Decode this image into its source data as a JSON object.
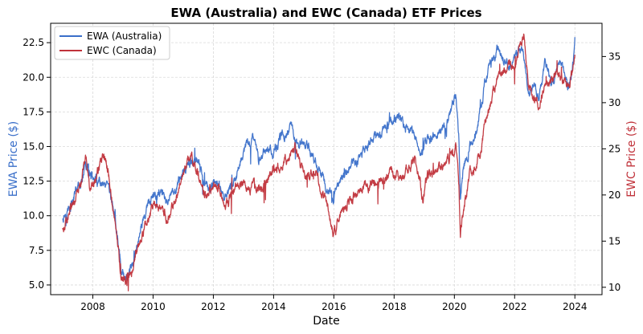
{
  "chart_data": {
    "type": "line",
    "title": "EWA (Australia) and EWC (Canada) ETF Prices",
    "xlabel": "Date",
    "ylabel_left": "EWA Price ($)",
    "ylabel_right": "EWC Price ($)",
    "xlim": [
      2006.6,
      2024.9
    ],
    "ylim_left": [
      4.3,
      23.9
    ],
    "ylim_right": [
      9.2,
      38.6
    ],
    "x_ticks": [
      2008,
      2010,
      2012,
      2014,
      2016,
      2018,
      2020,
      2022,
      2024
    ],
    "y_ticks_left": [
      5.0,
      7.5,
      10.0,
      12.5,
      15.0,
      17.5,
      20.0,
      22.5
    ],
    "y_ticks_right": [
      10,
      15,
      20,
      25,
      30,
      35
    ],
    "grid": true,
    "legend_position": "top-left",
    "colors": {
      "ewa": "#3a6fc9",
      "ewc": "#c0323a"
    },
    "series": [
      {
        "name": "EWA (Australia)",
        "axis": "left",
        "color": "#3a6fc9",
        "points": [
          [
            2007.0,
            9.9
          ],
          [
            2007.2,
            10.7
          ],
          [
            2007.4,
            11.5
          ],
          [
            2007.6,
            12.3
          ],
          [
            2007.75,
            13.8
          ],
          [
            2007.9,
            12.8
          ],
          [
            2008.1,
            12.5
          ],
          [
            2008.3,
            12.0
          ],
          [
            2008.5,
            11.8
          ],
          [
            2008.7,
            10.3
          ],
          [
            2008.85,
            8.0
          ],
          [
            2008.95,
            6.1
          ],
          [
            2009.1,
            5.4
          ],
          [
            2009.3,
            6.6
          ],
          [
            2009.5,
            8.2
          ],
          [
            2009.7,
            9.9
          ],
          [
            2009.9,
            11.0
          ],
          [
            2010.1,
            11.4
          ],
          [
            2010.3,
            11.8
          ],
          [
            2010.45,
            10.5
          ],
          [
            2010.6,
            11.5
          ],
          [
            2010.8,
            12.3
          ],
          [
            2011.0,
            13.2
          ],
          [
            2011.3,
            14.0
          ],
          [
            2011.5,
            13.8
          ],
          [
            2011.7,
            12.2
          ],
          [
            2011.9,
            11.6
          ],
          [
            2012.1,
            12.3
          ],
          [
            2012.4,
            11.3
          ],
          [
            2012.7,
            12.5
          ],
          [
            2013.0,
            14.5
          ],
          [
            2013.3,
            15.8
          ],
          [
            2013.5,
            14.0
          ],
          [
            2013.8,
            15.0
          ],
          [
            2014.0,
            14.6
          ],
          [
            2014.3,
            15.8
          ],
          [
            2014.6,
            16.4
          ],
          [
            2014.8,
            15.2
          ],
          [
            2015.0,
            15.2
          ],
          [
            2015.3,
            14.4
          ],
          [
            2015.6,
            12.8
          ],
          [
            2015.8,
            11.7
          ],
          [
            2016.0,
            11.4
          ],
          [
            2016.2,
            12.6
          ],
          [
            2016.5,
            13.5
          ],
          [
            2016.8,
            14.2
          ],
          [
            2017.0,
            14.6
          ],
          [
            2017.3,
            15.6
          ],
          [
            2017.6,
            16.2
          ],
          [
            2017.9,
            16.7
          ],
          [
            2018.1,
            17.2
          ],
          [
            2018.4,
            16.4
          ],
          [
            2018.7,
            15.8
          ],
          [
            2018.9,
            14.6
          ],
          [
            2019.1,
            15.4
          ],
          [
            2019.4,
            16.0
          ],
          [
            2019.7,
            16.7
          ],
          [
            2019.9,
            17.8
          ],
          [
            2020.05,
            18.5
          ],
          [
            2020.15,
            15.5
          ],
          [
            2020.2,
            11.4
          ],
          [
            2020.3,
            13.5
          ],
          [
            2020.5,
            15.0
          ],
          [
            2020.7,
            16.0
          ],
          [
            2020.9,
            18.0
          ],
          [
            2021.0,
            19.6
          ],
          [
            2021.2,
            20.8
          ],
          [
            2021.45,
            22.2
          ],
          [
            2021.6,
            21.4
          ],
          [
            2021.8,
            20.9
          ],
          [
            2022.0,
            21.4
          ],
          [
            2022.25,
            22.0
          ],
          [
            2022.45,
            19.2
          ],
          [
            2022.6,
            19.6
          ],
          [
            2022.8,
            18.6
          ],
          [
            2023.0,
            21.2
          ],
          [
            2023.2,
            19.7
          ],
          [
            2023.5,
            20.7
          ],
          [
            2023.8,
            19.3
          ],
          [
            2023.95,
            21.1
          ],
          [
            2024.0,
            22.9
          ]
        ]
      },
      {
        "name": "EWC (Canada)",
        "axis": "right",
        "color": "#c0323a",
        "points": [
          [
            2007.0,
            16.5
          ],
          [
            2007.2,
            18.0
          ],
          [
            2007.4,
            19.6
          ],
          [
            2007.6,
            21.0
          ],
          [
            2007.75,
            24.5
          ],
          [
            2007.9,
            21.0
          ],
          [
            2008.1,
            21.8
          ],
          [
            2008.35,
            24.2
          ],
          [
            2008.5,
            22.8
          ],
          [
            2008.7,
            18.2
          ],
          [
            2008.85,
            14.0
          ],
          [
            2008.95,
            11.0
          ],
          [
            2009.1,
            10.8
          ],
          [
            2009.3,
            12.0
          ],
          [
            2009.5,
            14.5
          ],
          [
            2009.7,
            16.3
          ],
          [
            2009.9,
            18.0
          ],
          [
            2010.1,
            19.0
          ],
          [
            2010.3,
            18.7
          ],
          [
            2010.45,
            17.2
          ],
          [
            2010.6,
            18.3
          ],
          [
            2010.8,
            20.2
          ],
          [
            2011.0,
            22.5
          ],
          [
            2011.2,
            24.2
          ],
          [
            2011.4,
            23.5
          ],
          [
            2011.7,
            20.2
          ],
          [
            2011.9,
            20.5
          ],
          [
            2012.1,
            21.5
          ],
          [
            2012.4,
            18.8
          ],
          [
            2012.7,
            20.5
          ],
          [
            2013.0,
            21.4
          ],
          [
            2013.3,
            20.9
          ],
          [
            2013.6,
            21.0
          ],
          [
            2013.9,
            22.4
          ],
          [
            2014.2,
            23.0
          ],
          [
            2014.5,
            24.1
          ],
          [
            2014.7,
            25.2
          ],
          [
            2014.9,
            23.0
          ],
          [
            2015.1,
            22.0
          ],
          [
            2015.4,
            22.3
          ],
          [
            2015.6,
            20.4
          ],
          [
            2015.8,
            18.6
          ],
          [
            2016.0,
            15.8
          ],
          [
            2016.2,
            18.2
          ],
          [
            2016.5,
            19.4
          ],
          [
            2016.8,
            20.0
          ],
          [
            2017.0,
            20.9
          ],
          [
            2017.3,
            21.2
          ],
          [
            2017.6,
            21.5
          ],
          [
            2017.9,
            22.8
          ],
          [
            2018.2,
            21.5
          ],
          [
            2018.5,
            23.0
          ],
          [
            2018.7,
            24.2
          ],
          [
            2018.85,
            22.2
          ],
          [
            2018.95,
            19.6
          ],
          [
            2019.1,
            22.0
          ],
          [
            2019.4,
            22.9
          ],
          [
            2019.7,
            23.4
          ],
          [
            2019.9,
            24.6
          ],
          [
            2020.05,
            25.2
          ],
          [
            2020.15,
            20.7
          ],
          [
            2020.2,
            15.6
          ],
          [
            2020.3,
            18.4
          ],
          [
            2020.5,
            22.0
          ],
          [
            2020.7,
            23.2
          ],
          [
            2020.9,
            25.0
          ],
          [
            2021.0,
            27.2
          ],
          [
            2021.2,
            30.0
          ],
          [
            2021.45,
            32.8
          ],
          [
            2021.6,
            33.0
          ],
          [
            2021.8,
            34.2
          ],
          [
            2022.0,
            34.0
          ],
          [
            2022.15,
            35.4
          ],
          [
            2022.3,
            37.2
          ],
          [
            2022.45,
            32.5
          ],
          [
            2022.6,
            30.4
          ],
          [
            2022.8,
            29.8
          ],
          [
            2023.0,
            31.8
          ],
          [
            2023.2,
            32.5
          ],
          [
            2023.4,
            33.3
          ],
          [
            2023.6,
            32.5
          ],
          [
            2023.8,
            31.5
          ],
          [
            2023.95,
            33.8
          ],
          [
            2024.0,
            35.2
          ]
        ]
      }
    ]
  }
}
